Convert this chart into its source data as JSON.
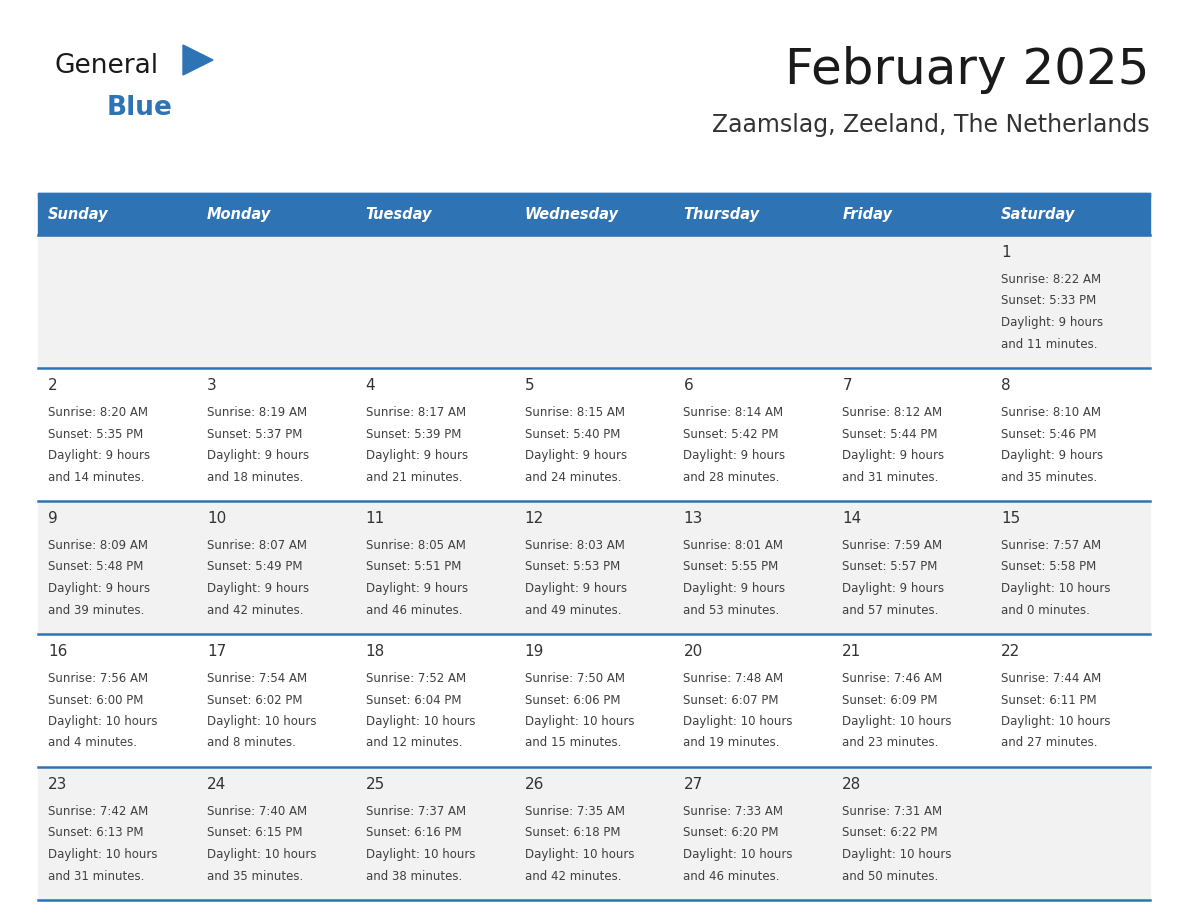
{
  "title": "February 2025",
  "subtitle": "Zaamslag, Zeeland, The Netherlands",
  "days_of_week": [
    "Sunday",
    "Monday",
    "Tuesday",
    "Wednesday",
    "Thursday",
    "Friday",
    "Saturday"
  ],
  "header_bg": "#2E74B5",
  "header_text": "#FFFFFF",
  "row_bg_light": "#F2F2F2",
  "row_bg_white": "#FFFFFF",
  "separator_color": "#2E74B5",
  "cell_text_color": "#404040",
  "day_num_color": "#333333",
  "title_color": "#1a1a1a",
  "subtitle_color": "#333333",
  "calendar": [
    [
      null,
      null,
      null,
      null,
      null,
      null,
      {
        "day": 1,
        "sunrise": "8:22 AM",
        "sunset": "5:33 PM",
        "daylight_hours": 9,
        "daylight_minutes": 11
      }
    ],
    [
      {
        "day": 2,
        "sunrise": "8:20 AM",
        "sunset": "5:35 PM",
        "daylight_hours": 9,
        "daylight_minutes": 14
      },
      {
        "day": 3,
        "sunrise": "8:19 AM",
        "sunset": "5:37 PM",
        "daylight_hours": 9,
        "daylight_minutes": 18
      },
      {
        "day": 4,
        "sunrise": "8:17 AM",
        "sunset": "5:39 PM",
        "daylight_hours": 9,
        "daylight_minutes": 21
      },
      {
        "day": 5,
        "sunrise": "8:15 AM",
        "sunset": "5:40 PM",
        "daylight_hours": 9,
        "daylight_minutes": 24
      },
      {
        "day": 6,
        "sunrise": "8:14 AM",
        "sunset": "5:42 PM",
        "daylight_hours": 9,
        "daylight_minutes": 28
      },
      {
        "day": 7,
        "sunrise": "8:12 AM",
        "sunset": "5:44 PM",
        "daylight_hours": 9,
        "daylight_minutes": 31
      },
      {
        "day": 8,
        "sunrise": "8:10 AM",
        "sunset": "5:46 PM",
        "daylight_hours": 9,
        "daylight_minutes": 35
      }
    ],
    [
      {
        "day": 9,
        "sunrise": "8:09 AM",
        "sunset": "5:48 PM",
        "daylight_hours": 9,
        "daylight_minutes": 39
      },
      {
        "day": 10,
        "sunrise": "8:07 AM",
        "sunset": "5:49 PM",
        "daylight_hours": 9,
        "daylight_minutes": 42
      },
      {
        "day": 11,
        "sunrise": "8:05 AM",
        "sunset": "5:51 PM",
        "daylight_hours": 9,
        "daylight_minutes": 46
      },
      {
        "day": 12,
        "sunrise": "8:03 AM",
        "sunset": "5:53 PM",
        "daylight_hours": 9,
        "daylight_minutes": 49
      },
      {
        "day": 13,
        "sunrise": "8:01 AM",
        "sunset": "5:55 PM",
        "daylight_hours": 9,
        "daylight_minutes": 53
      },
      {
        "day": 14,
        "sunrise": "7:59 AM",
        "sunset": "5:57 PM",
        "daylight_hours": 9,
        "daylight_minutes": 57
      },
      {
        "day": 15,
        "sunrise": "7:57 AM",
        "sunset": "5:58 PM",
        "daylight_hours": 10,
        "daylight_minutes": 0
      }
    ],
    [
      {
        "day": 16,
        "sunrise": "7:56 AM",
        "sunset": "6:00 PM",
        "daylight_hours": 10,
        "daylight_minutes": 4
      },
      {
        "day": 17,
        "sunrise": "7:54 AM",
        "sunset": "6:02 PM",
        "daylight_hours": 10,
        "daylight_minutes": 8
      },
      {
        "day": 18,
        "sunrise": "7:52 AM",
        "sunset": "6:04 PM",
        "daylight_hours": 10,
        "daylight_minutes": 12
      },
      {
        "day": 19,
        "sunrise": "7:50 AM",
        "sunset": "6:06 PM",
        "daylight_hours": 10,
        "daylight_minutes": 15
      },
      {
        "day": 20,
        "sunrise": "7:48 AM",
        "sunset": "6:07 PM",
        "daylight_hours": 10,
        "daylight_minutes": 19
      },
      {
        "day": 21,
        "sunrise": "7:46 AM",
        "sunset": "6:09 PM",
        "daylight_hours": 10,
        "daylight_minutes": 23
      },
      {
        "day": 22,
        "sunrise": "7:44 AM",
        "sunset": "6:11 PM",
        "daylight_hours": 10,
        "daylight_minutes": 27
      }
    ],
    [
      {
        "day": 23,
        "sunrise": "7:42 AM",
        "sunset": "6:13 PM",
        "daylight_hours": 10,
        "daylight_minutes": 31
      },
      {
        "day": 24,
        "sunrise": "7:40 AM",
        "sunset": "6:15 PM",
        "daylight_hours": 10,
        "daylight_minutes": 35
      },
      {
        "day": 25,
        "sunrise": "7:37 AM",
        "sunset": "6:16 PM",
        "daylight_hours": 10,
        "daylight_minutes": 38
      },
      {
        "day": 26,
        "sunrise": "7:35 AM",
        "sunset": "6:18 PM",
        "daylight_hours": 10,
        "daylight_minutes": 42
      },
      {
        "day": 27,
        "sunrise": "7:33 AM",
        "sunset": "6:20 PM",
        "daylight_hours": 10,
        "daylight_minutes": 46
      },
      {
        "day": 28,
        "sunrise": "7:31 AM",
        "sunset": "6:22 PM",
        "daylight_hours": 10,
        "daylight_minutes": 50
      },
      null
    ]
  ],
  "logo_general_color": "#1a1a1a",
  "logo_blue_color": "#2E74B5"
}
